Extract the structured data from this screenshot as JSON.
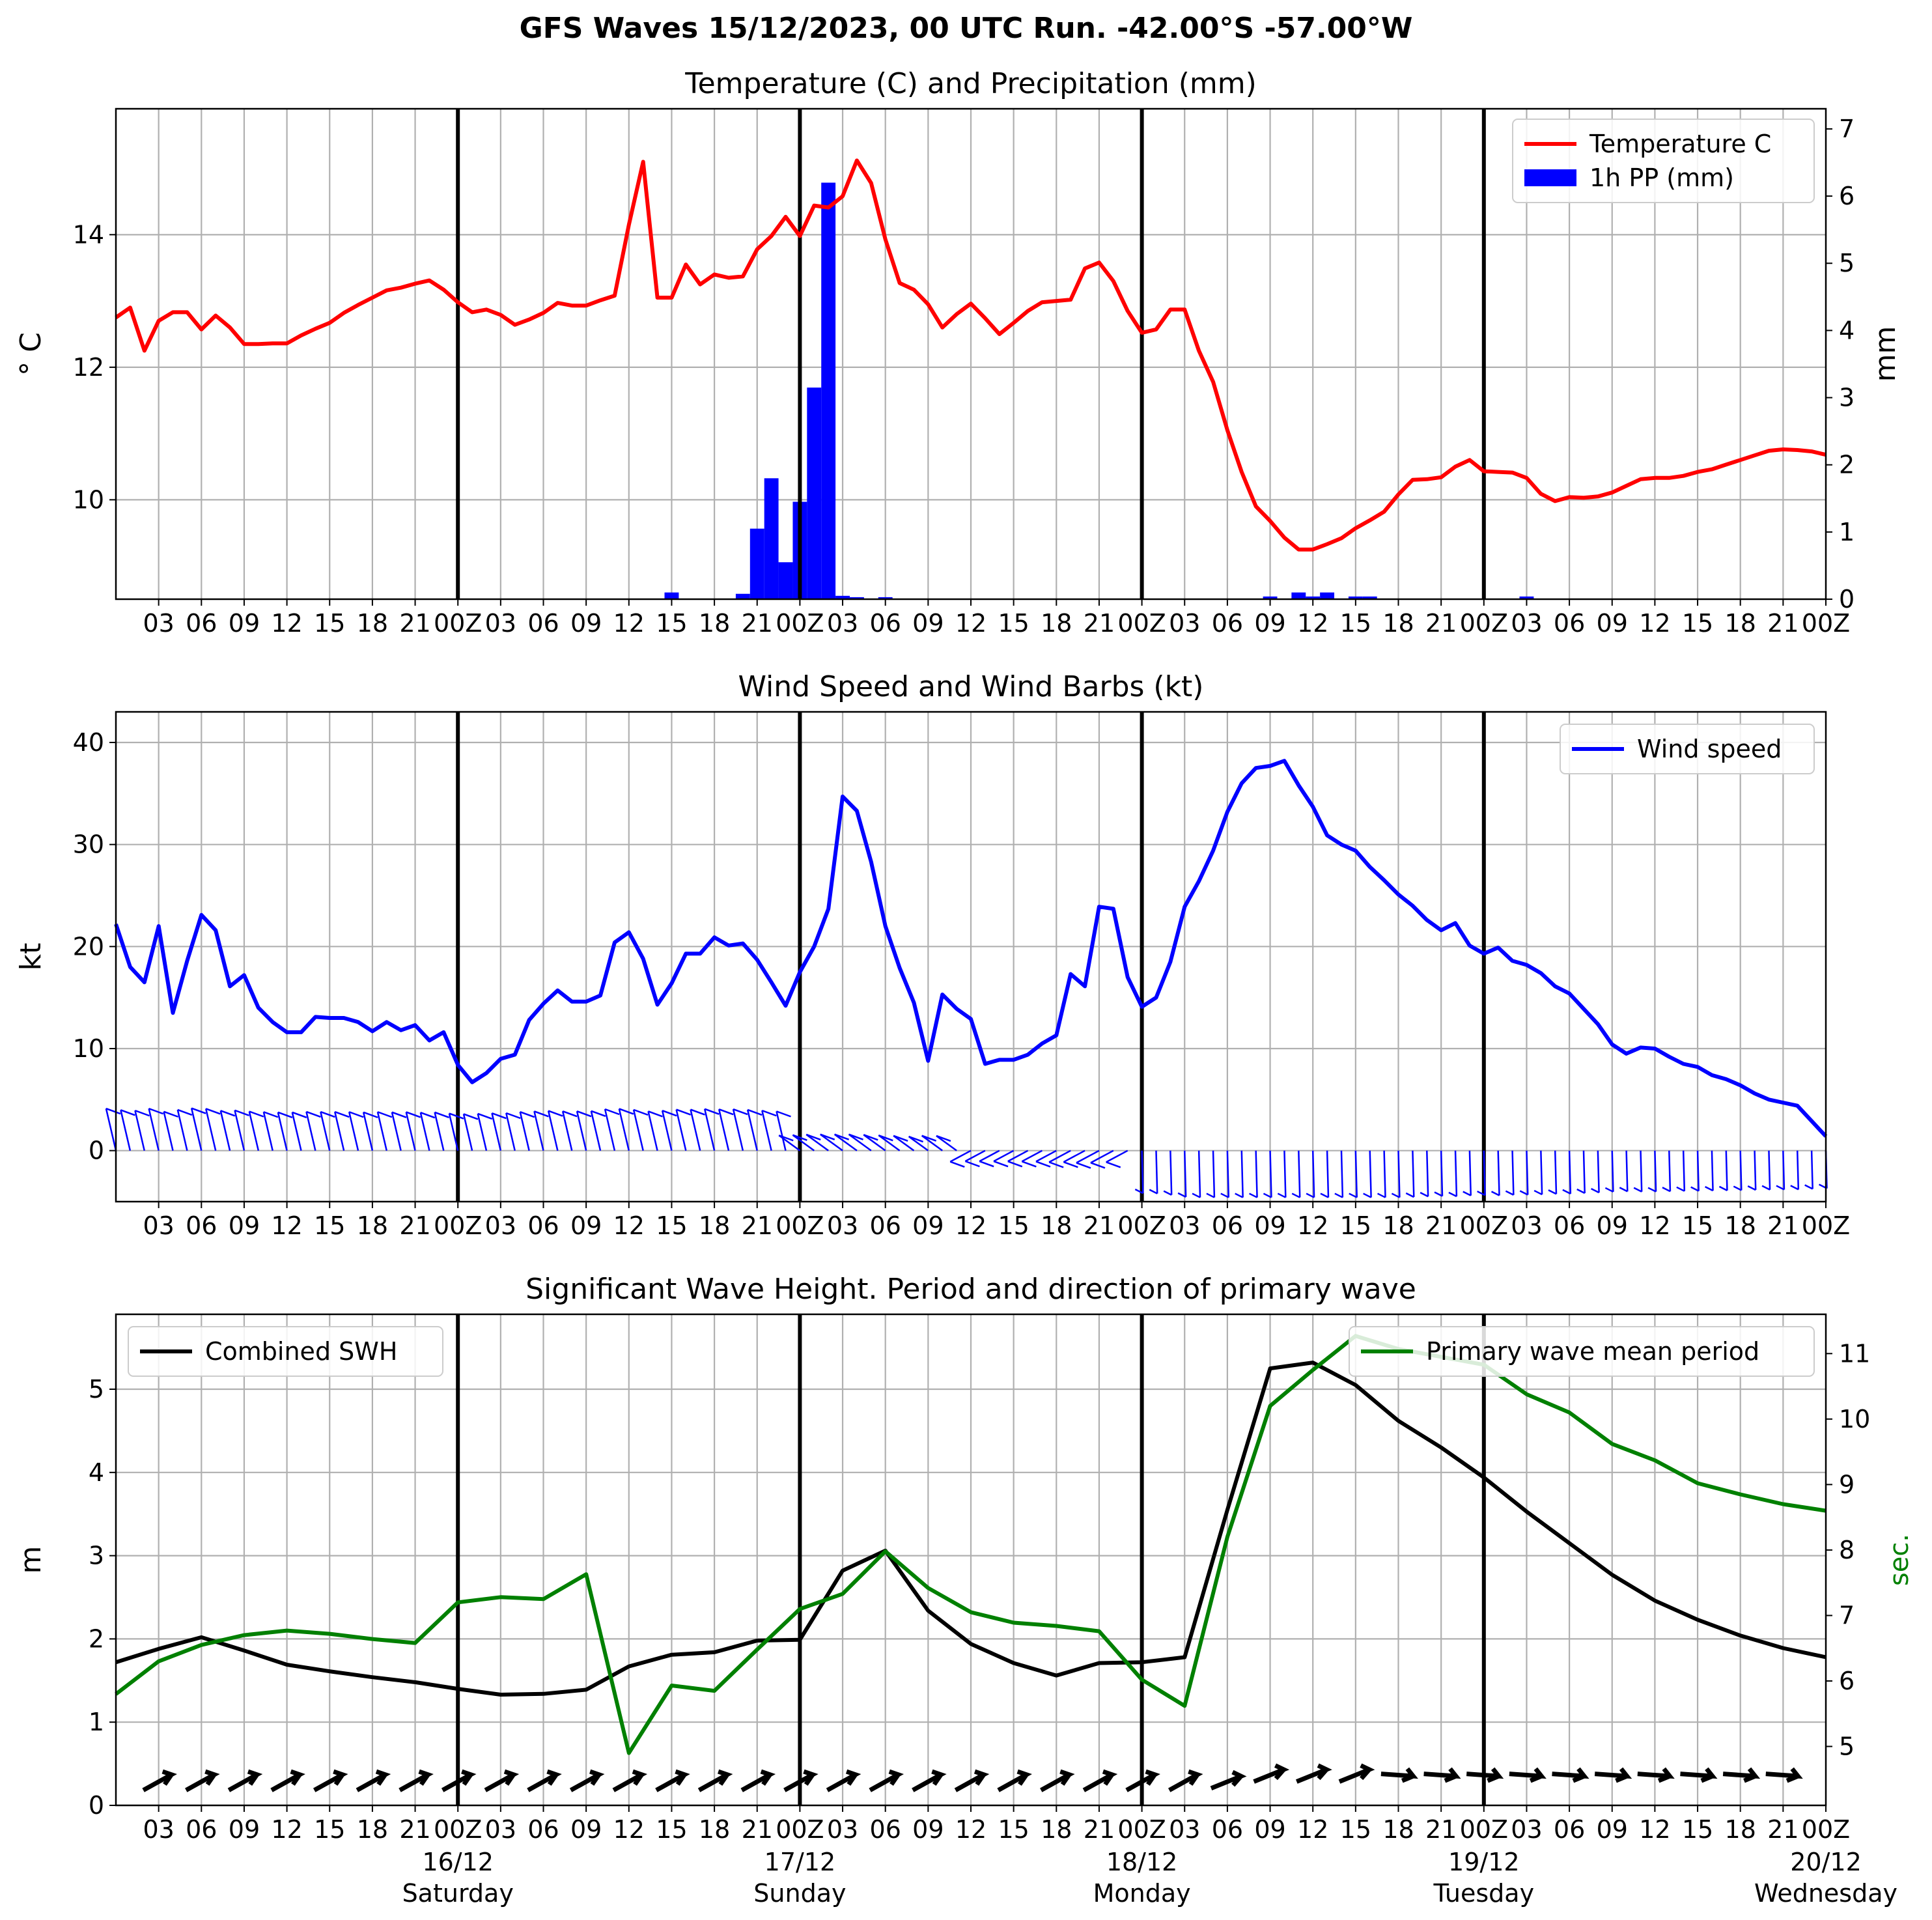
{
  "figure": {
    "suptitle": "GFS Waves 15/12/2023, 00 UTC Run. -42.00°S -57.00°W"
  },
  "time_axis": {
    "tick_labels": [
      "03",
      "06",
      "09",
      "12",
      "15",
      "18",
      "21",
      "00Z",
      "03",
      "06",
      "09",
      "12",
      "15",
      "18",
      "21",
      "00Z",
      "03",
      "06",
      "09",
      "12",
      "15",
      "18",
      "21",
      "00Z",
      "03",
      "06",
      "09",
      "12",
      "15",
      "18",
      "21",
      "00Z",
      "03",
      "06",
      "09",
      "12",
      "15",
      "18",
      "21",
      "00Z"
    ],
    "day_labels": [
      {
        "hour": 24,
        "date": "16/12",
        "day": "Saturday"
      },
      {
        "hour": 48,
        "date": "17/12",
        "day": "Sunday"
      },
      {
        "hour": 72,
        "date": "18/12",
        "day": "Monday"
      },
      {
        "hour": 96,
        "date": "19/12",
        "day": "Tuesday"
      },
      {
        "hour": 120,
        "date": "20/12",
        "day": "Wednesday"
      }
    ]
  },
  "chart_data": [
    {
      "type": "line",
      "title": "Temperature (C) and Precipitation (mm)",
      "xlabel": "",
      "ylabel": "$^\\circ$C",
      "ylabel_display": "° C",
      "ylabel_right": "mm",
      "xlim": [
        0,
        120
      ],
      "ylim": [
        8.5,
        15.9
      ],
      "ylim_right": [
        0,
        7.3
      ],
      "yticks": [
        10,
        12,
        14
      ],
      "yticks_right": [
        0,
        1,
        2,
        3,
        4,
        5,
        6,
        7
      ],
      "grid": true,
      "legend": "upper right",
      "colors": {
        "temperature": "#ff0000",
        "precip": "#0000ff"
      },
      "series": [
        {
          "name": "Temperature C",
          "kind": "line",
          "x": [
            0,
            1,
            2,
            3,
            4,
            5,
            6,
            7,
            8,
            9,
            10,
            11,
            12,
            13,
            14,
            15,
            16,
            17,
            18,
            19,
            20,
            21,
            22,
            23,
            24,
            25,
            26,
            27,
            28,
            29,
            30,
            31,
            32,
            33,
            34,
            35,
            36,
            37,
            38,
            39,
            40,
            41,
            42,
            43,
            44,
            45,
            46,
            47,
            48,
            49,
            50,
            51,
            52,
            53,
            54,
            55,
            56,
            57,
            58,
            59,
            60,
            61,
            62,
            63,
            64,
            65,
            66,
            67,
            68,
            69,
            70,
            71,
            72,
            73,
            74,
            75,
            76,
            77,
            78,
            79,
            80,
            81,
            82,
            83,
            84,
            85,
            86,
            87,
            88,
            89,
            90,
            91,
            92,
            93,
            94,
            95,
            96,
            97,
            98,
            99,
            100,
            101,
            102,
            103,
            104,
            105,
            106,
            107,
            108,
            109,
            110,
            111,
            112,
            113,
            114,
            115,
            116,
            117,
            118,
            119,
            120
          ],
          "values": [
            12.75,
            12.9,
            12.25,
            12.7,
            12.83,
            12.83,
            12.57,
            12.78,
            12.6,
            12.35,
            12.35,
            12.36,
            12.36,
            12.48,
            12.58,
            12.67,
            12.82,
            12.94,
            13.05,
            13.16,
            13.2,
            13.26,
            13.31,
            13.17,
            12.98,
            12.83,
            12.87,
            12.79,
            12.64,
            12.72,
            12.82,
            12.97,
            12.93,
            12.93,
            13.01,
            13.08,
            14.15,
            15.1,
            13.05,
            13.05,
            13.55,
            13.25,
            13.4,
            13.35,
            13.37,
            13.78,
            13.98,
            14.27,
            13.98,
            14.44,
            14.41,
            14.58,
            15.12,
            14.78,
            13.93,
            13.27,
            13.17,
            12.95,
            12.6,
            12.8,
            12.96,
            12.74,
            12.5,
            12.67,
            12.85,
            12.98,
            13.0,
            13.02,
            13.49,
            13.58,
            13.3,
            12.85,
            12.52,
            12.57,
            12.87,
            12.87,
            12.25,
            11.78,
            11.05,
            10.42,
            9.9,
            9.68,
            9.43,
            9.25,
            9.25,
            9.33,
            9.42,
            9.57,
            9.69,
            9.82,
            10.08,
            10.3,
            10.31,
            10.34,
            10.5,
            10.6,
            10.43,
            10.42,
            10.41,
            10.33,
            10.09,
            9.98,
            10.04,
            10.03,
            10.05,
            10.11,
            10.21,
            10.31,
            10.33,
            10.33,
            10.36,
            10.42,
            10.46,
            10.53,
            10.6,
            10.67,
            10.74,
            10.76,
            10.75,
            10.73,
            10.68
          ]
        },
        {
          "name": "1h PP (mm)",
          "kind": "bar",
          "axis": "right",
          "x": [
            39,
            44,
            45,
            46,
            47,
            48,
            49,
            50,
            51,
            52,
            54,
            81,
            83,
            84,
            85,
            87,
            88,
            99
          ],
          "values": [
            0.1,
            0.08,
            1.05,
            1.8,
            0.55,
            1.45,
            3.15,
            6.2,
            0.05,
            0.03,
            0.03,
            0.04,
            0.1,
            0.04,
            0.1,
            0.04,
            0.04,
            0.04
          ]
        }
      ]
    },
    {
      "type": "line",
      "title": "Wind Speed and Wind Barbs (kt)",
      "xlabel": "",
      "ylabel": "kt",
      "xlim": [
        0,
        120
      ],
      "ylim": [
        -5,
        43
      ],
      "yticks": [
        0,
        10,
        20,
        30,
        40
      ],
      "grid": true,
      "legend": "upper right",
      "colors": {
        "wind": "#0000ff"
      },
      "series": [
        {
          "name": "Wind speed",
          "x": [
            0,
            1,
            2,
            3,
            4,
            5,
            6,
            7,
            8,
            9,
            10,
            11,
            12,
            13,
            14,
            15,
            16,
            17,
            18,
            19,
            20,
            21,
            22,
            23,
            24,
            25,
            26,
            27,
            28,
            29,
            30,
            31,
            32,
            33,
            34,
            35,
            36,
            37,
            38,
            39,
            40,
            41,
            42,
            43,
            44,
            45,
            46,
            47,
            48,
            49,
            50,
            51,
            52,
            53,
            54,
            55,
            56,
            57,
            58,
            59,
            60,
            61,
            62,
            63,
            64,
            65,
            66,
            67,
            68,
            69,
            70,
            71,
            72,
            73,
            74,
            75,
            76,
            77,
            78,
            79,
            80,
            81,
            82,
            83,
            84,
            85,
            86,
            87,
            88,
            89,
            90,
            91,
            92,
            93,
            94,
            95,
            96,
            97,
            98,
            99,
            100,
            101,
            102,
            103,
            104,
            105,
            106,
            107,
            108,
            109,
            110,
            111,
            112,
            113,
            114,
            115,
            116,
            117,
            118,
            119,
            120
          ],
          "values": [
            22.2,
            18.0,
            16.5,
            22.0,
            13.5,
            18.6,
            23.1,
            21.6,
            16.1,
            17.2,
            14.0,
            12.6,
            11.6,
            11.6,
            13.1,
            13.0,
            13.0,
            12.6,
            11.7,
            12.6,
            11.8,
            12.3,
            10.8,
            11.6,
            8.4,
            6.7,
            7.6,
            9.0,
            9.4,
            12.8,
            14.4,
            15.7,
            14.6,
            14.6,
            15.2,
            20.4,
            21.4,
            18.8,
            14.3,
            16.4,
            19.3,
            19.3,
            20.9,
            20.1,
            20.3,
            18.7,
            16.5,
            14.2,
            17.5,
            20.0,
            23.7,
            34.7,
            33.3,
            28.3,
            22.0,
            17.9,
            14.5,
            8.8,
            15.3,
            13.9,
            12.9,
            8.5,
            8.9,
            8.9,
            9.4,
            10.5,
            11.3,
            17.3,
            16.1,
            23.9,
            23.7,
            17.0,
            14.1,
            15.0,
            18.5,
            23.9,
            26.4,
            29.4,
            33.2,
            36.0,
            37.5,
            37.7,
            38.2,
            35.8,
            33.7,
            30.9,
            30.0,
            29.4,
            27.8,
            26.5,
            25.1,
            24.0,
            22.6,
            21.6,
            22.3,
            20.1,
            19.3,
            19.9,
            18.6,
            18.2,
            17.4,
            16.1,
            15.4,
            13.9,
            12.4,
            10.4,
            9.5,
            10.1,
            10.0,
            9.2,
            8.5,
            8.2,
            7.4,
            7.0,
            6.4,
            5.6,
            5.0,
            4.7,
            4.4,
            2.9,
            1.4
          ]
        }
      ],
      "barbs": "wind barbs drawn along y=0, hourly to 00Z 17/12 then mixed; later barbs dip below zero (southwesterly shift)"
    },
    {
      "type": "line",
      "title": "Significant Wave Height. Period and direction of primary wave",
      "xlabel": "",
      "ylabel": "m",
      "ylabel_right": "sec.",
      "xlim": [
        0,
        120
      ],
      "ylim": [
        0,
        5.9
      ],
      "ylim_right": [
        4.1,
        11.6
      ],
      "yticks": [
        0,
        1,
        2,
        3,
        4,
        5
      ],
      "yticks_right": [
        5,
        6,
        7,
        8,
        9,
        10,
        11
      ],
      "grid": true,
      "legend": "upper left and upper right",
      "colors": {
        "swh": "#000000",
        "period": "#008000"
      },
      "series": [
        {
          "name": "Combined SWH",
          "x": [
            0,
            3,
            6,
            9,
            12,
            15,
            18,
            21,
            24,
            27,
            30,
            33,
            36,
            39,
            42,
            45,
            48,
            51,
            54,
            57,
            60,
            63,
            66,
            69,
            72,
            75,
            78,
            81,
            84,
            87,
            90,
            93,
            96,
            99,
            102,
            105,
            108,
            111,
            114,
            117,
            120
          ],
          "values": [
            1.72,
            1.88,
            2.02,
            1.86,
            1.69,
            1.61,
            1.54,
            1.48,
            1.4,
            1.33,
            1.34,
            1.39,
            1.67,
            1.81,
            1.84,
            1.98,
            1.99,
            2.82,
            3.06,
            2.34,
            1.94,
            1.71,
            1.56,
            1.71,
            1.72,
            1.78,
            3.55,
            5.25,
            5.32,
            5.05,
            4.62,
            4.3,
            3.94,
            3.53,
            3.15,
            2.77,
            2.46,
            2.23,
            2.04,
            1.89,
            1.78
          ]
        },
        {
          "name": "Primary wave mean period",
          "axis": "right",
          "x": [
            0,
            3,
            6,
            9,
            12,
            15,
            18,
            21,
            24,
            27,
            30,
            33,
            36,
            39,
            42,
            45,
            48,
            51,
            54,
            57,
            60,
            63,
            66,
            69,
            72,
            75,
            78,
            81,
            84,
            87,
            90,
            93,
            96,
            99,
            102,
            105,
            108,
            111,
            114,
            117,
            120
          ],
          "values": [
            5.8,
            6.3,
            6.55,
            6.7,
            6.77,
            6.72,
            6.64,
            6.58,
            7.2,
            7.28,
            7.25,
            7.63,
            4.9,
            5.93,
            5.85,
            6.48,
            7.1,
            7.33,
            7.98,
            7.42,
            7.05,
            6.89,
            6.84,
            6.76,
            6.02,
            5.62,
            8.2,
            10.2,
            10.75,
            11.27,
            11.07,
            10.95,
            10.83,
            10.38,
            10.1,
            9.62,
            9.37,
            9.02,
            8.85,
            8.7,
            8.6
          ]
        }
      ],
      "direction_arrows": "black arrows along y≈0.3 every 3 h indicating primary wave direction"
    }
  ]
}
